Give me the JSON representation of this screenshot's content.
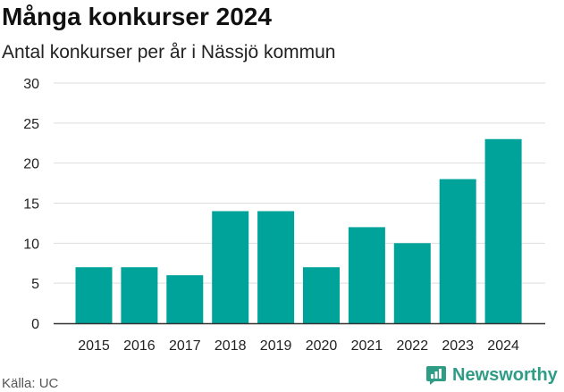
{
  "title": "Många konkurser 2024",
  "subtitle": "Antal konkurser per år i Nässjö kommun",
  "source": "Källa: UC",
  "brand": "Newsworthy",
  "colors": {
    "bar": "#00a39a",
    "grid": "#dddddd",
    "axis": "#333333",
    "brand": "#2f9c86"
  },
  "chart_data": {
    "type": "bar",
    "categories": [
      "2015",
      "2016",
      "2017",
      "2018",
      "2019",
      "2020",
      "2021",
      "2022",
      "2023",
      "2024"
    ],
    "values": [
      7,
      7,
      6,
      14,
      14,
      7,
      12,
      10,
      18,
      23
    ],
    "title": "Många konkurser 2024",
    "subtitle": "Antal konkurser per år i Nässjö kommun",
    "ylim": [
      0,
      30
    ],
    "yticks": [
      0,
      5,
      10,
      15,
      20,
      25,
      30
    ],
    "grid": true,
    "legend": "none"
  }
}
